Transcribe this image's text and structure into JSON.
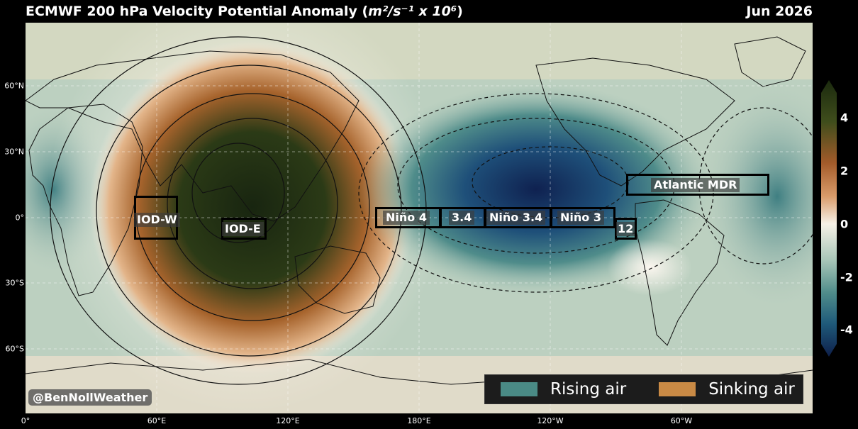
{
  "title": "ECMWF 200 hPa Velocity Potential Anomaly",
  "units_text": "m²/s⁻¹ x 10⁶",
  "date": "Jun 2026",
  "lat_labels": [
    "60°N",
    "30°N",
    "0°",
    "30°S",
    "60°S"
  ],
  "lon_labels": [
    "0°",
    "60°E",
    "120°E",
    "180°E",
    "120°W",
    "60°W"
  ],
  "colorbar": {
    "ticks": [
      "4",
      "2",
      "0",
      "-2",
      "-4"
    ],
    "colors": [
      "#0e1f4a",
      "#1f5a7a",
      "#4f8c8a",
      "#a9c6b8",
      "#f6f1e7",
      "#d99b6a",
      "#a35b2a",
      "#3f4d1c",
      "#1b2a0e"
    ]
  },
  "regions": {
    "iod_w": "IOD-W",
    "iod_e": "IOD-E",
    "nino4": "Niño 4",
    "nino34_short": "3.4",
    "nino34": "Niño 3.4",
    "nino3": "Niño 3",
    "nino12": "12",
    "atlantic": "Atlantic MDR"
  },
  "legend": {
    "rising": "Rising air",
    "sinking": "Sinking air",
    "rising_color": "#4a8a85",
    "sinking_color": "#c98a45"
  },
  "credit": "@BenNollWeather"
}
